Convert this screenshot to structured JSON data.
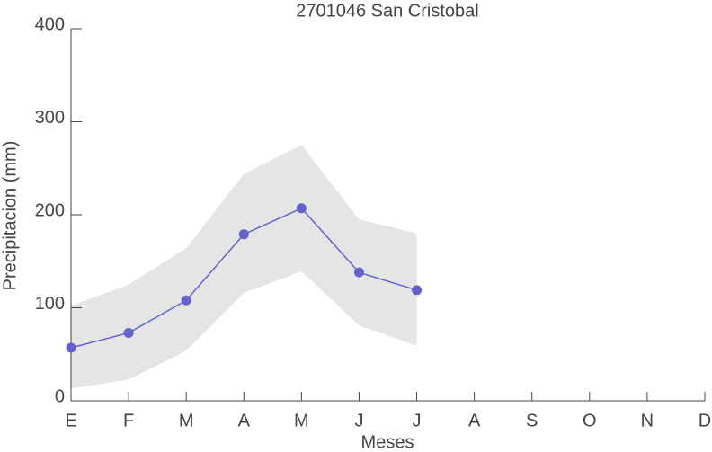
{
  "chart_data": {
    "type": "line",
    "title": "2701046 San Cristobal",
    "x_label": "Meses",
    "y_label": "Precipitacion (mm)",
    "categories": [
      "E",
      "F",
      "M",
      "A",
      "M",
      "J",
      "J",
      "A",
      "S",
      "O",
      "N",
      "D"
    ],
    "values": [
      57,
      73,
      108,
      179,
      207,
      138,
      119,
      null,
      null,
      null,
      null,
      null
    ],
    "band_upper": [
      102,
      125,
      164,
      244,
      275,
      195,
      180,
      null,
      null,
      null,
      null,
      null
    ],
    "band_lower": [
      13,
      23,
      54,
      116,
      139,
      81,
      59,
      null,
      null,
      null,
      null,
      null
    ],
    "color": "#6262cc",
    "band_color": "#e5e5e5",
    "ylim": [
      0,
      400
    ],
    "yticks": [
      0,
      100,
      200,
      300,
      400
    ]
  }
}
